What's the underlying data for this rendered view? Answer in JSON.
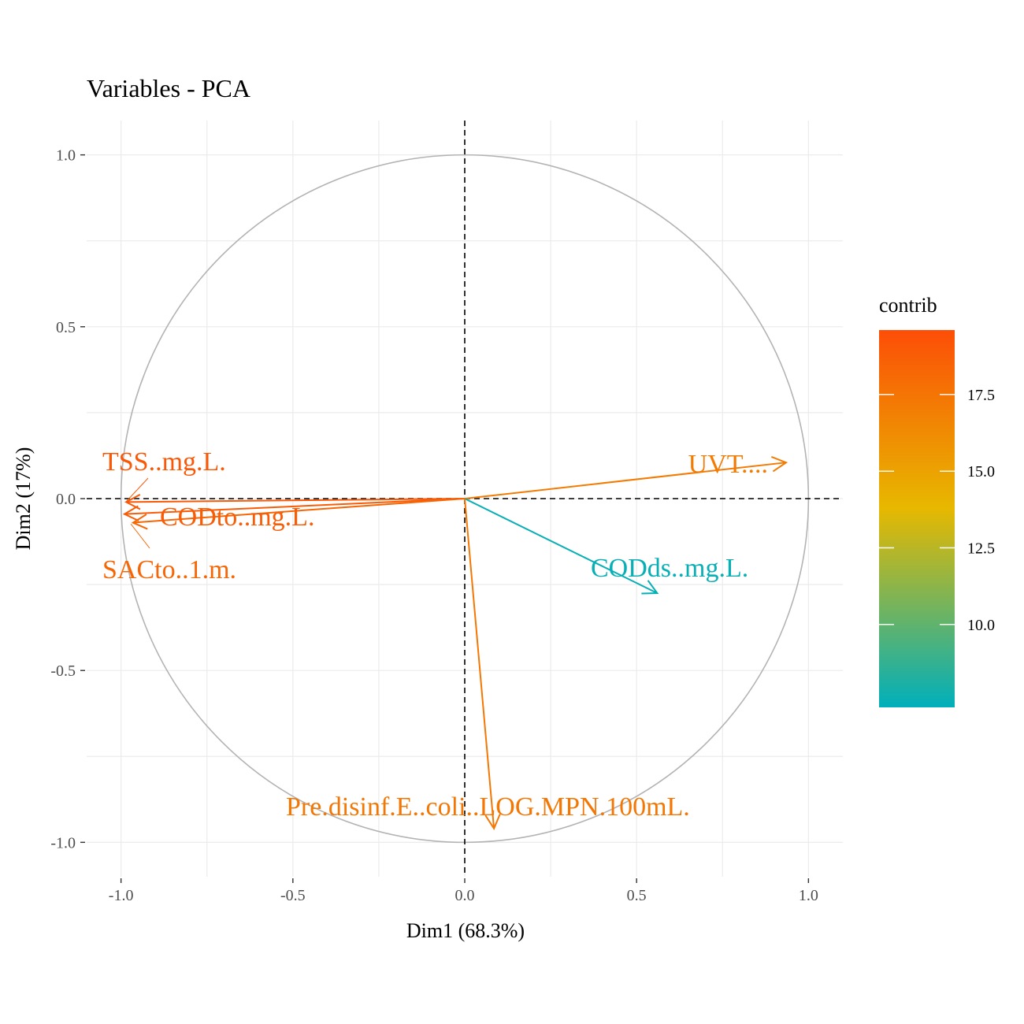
{
  "chart_data": {
    "type": "scatter",
    "subtype": "pca-variable-correlation-circle",
    "title": "Variables - PCA",
    "xlabel": "Dim1 (68.3%)",
    "ylabel": "Dim2 (17%)",
    "xlim": [
      -1.1,
      1.1
    ],
    "ylim": [
      -1.1,
      1.1
    ],
    "x_ticks": [
      -1.0,
      -0.5,
      0.0,
      0.5,
      1.0
    ],
    "y_ticks": [
      -1.0,
      -0.5,
      0.0,
      0.5,
      1.0
    ],
    "x_tick_labels": [
      "-1.0",
      "-0.5",
      "0.0",
      "0.5",
      "1.0"
    ],
    "y_tick_labels": [
      "-1.0",
      "-0.5",
      "0.0",
      "0.5",
      "1.0"
    ],
    "grid": true,
    "unit_circle": true,
    "reference_lines": {
      "x": 0,
      "y": 0,
      "style": "dashed"
    },
    "variables": [
      {
        "name": "TSS..mg.L.",
        "x": -0.985,
        "y": -0.01,
        "contrib": 19.0
      },
      {
        "name": "CODto..mg.L.",
        "x": -0.99,
        "y": -0.045,
        "contrib": 18.8
      },
      {
        "name": "SACto..1.m.",
        "x": -0.965,
        "y": -0.07,
        "contrib": 18.2
      },
      {
        "name": "UVT....",
        "x": 0.935,
        "y": 0.105,
        "contrib": 17.0
      },
      {
        "name": "CODds..mg.L.",
        "x": 0.56,
        "y": -0.275,
        "contrib": 7.5
      },
      {
        "name": "Pre.disinf.E..coli..LOG.MPN.100mL.",
        "x": 0.085,
        "y": -0.96,
        "contrib": 17.2
      }
    ],
    "legend": {
      "title": "contrib",
      "placement": "right",
      "type": "gradient",
      "range": [
        7.3,
        19.6
      ],
      "ticks": [
        10.0,
        12.5,
        15.0,
        17.5
      ],
      "tick_labels": [
        "10.0",
        "12.5",
        "15.0",
        "17.5"
      ],
      "colors": {
        "low": "#00AFBB",
        "mid": "#E7B800",
        "high": "#FC4E07"
      }
    }
  }
}
